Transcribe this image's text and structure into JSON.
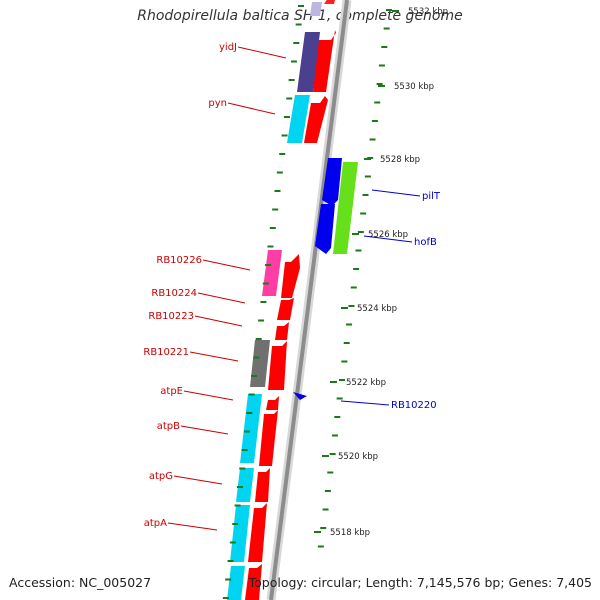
{
  "title": "Rhodopirellula baltica SH 1, complete genome",
  "footer": {
    "accession": "Accession: NC_005027",
    "summary": "Topology: circular; Length: 7,145,576 bp; Genes: 7,405"
  },
  "scale_labels": [
    "5532 kbp",
    "5530 kbp",
    "5528 kbp",
    "5526 kbp",
    "5524 kbp",
    "5522 kbp",
    "5520 kbp",
    "5518 kbp"
  ],
  "genes_left": [
    "yidJ",
    "pyn",
    "RB10226",
    "RB10224",
    "RB10223",
    "RB10221",
    "atpE",
    "atpB",
    "atpG",
    "atpA"
  ],
  "genes_right": [
    "pilT",
    "hofB",
    "RB10220"
  ],
  "colors": {
    "backbone": "#8c8c8c",
    "forward_gene": "#ff0000",
    "reverse_gene": "#0000ee",
    "scale_tick": "#1a7a1a",
    "label_left": "#cc0000",
    "label_right": "#0000cc",
    "cog_purple": "#4b3f8f",
    "cog_cyan": "#00d4f0",
    "cog_pink": "#ff3ea5",
    "cog_gray": "#707070",
    "cog_green": "#66e01a"
  }
}
